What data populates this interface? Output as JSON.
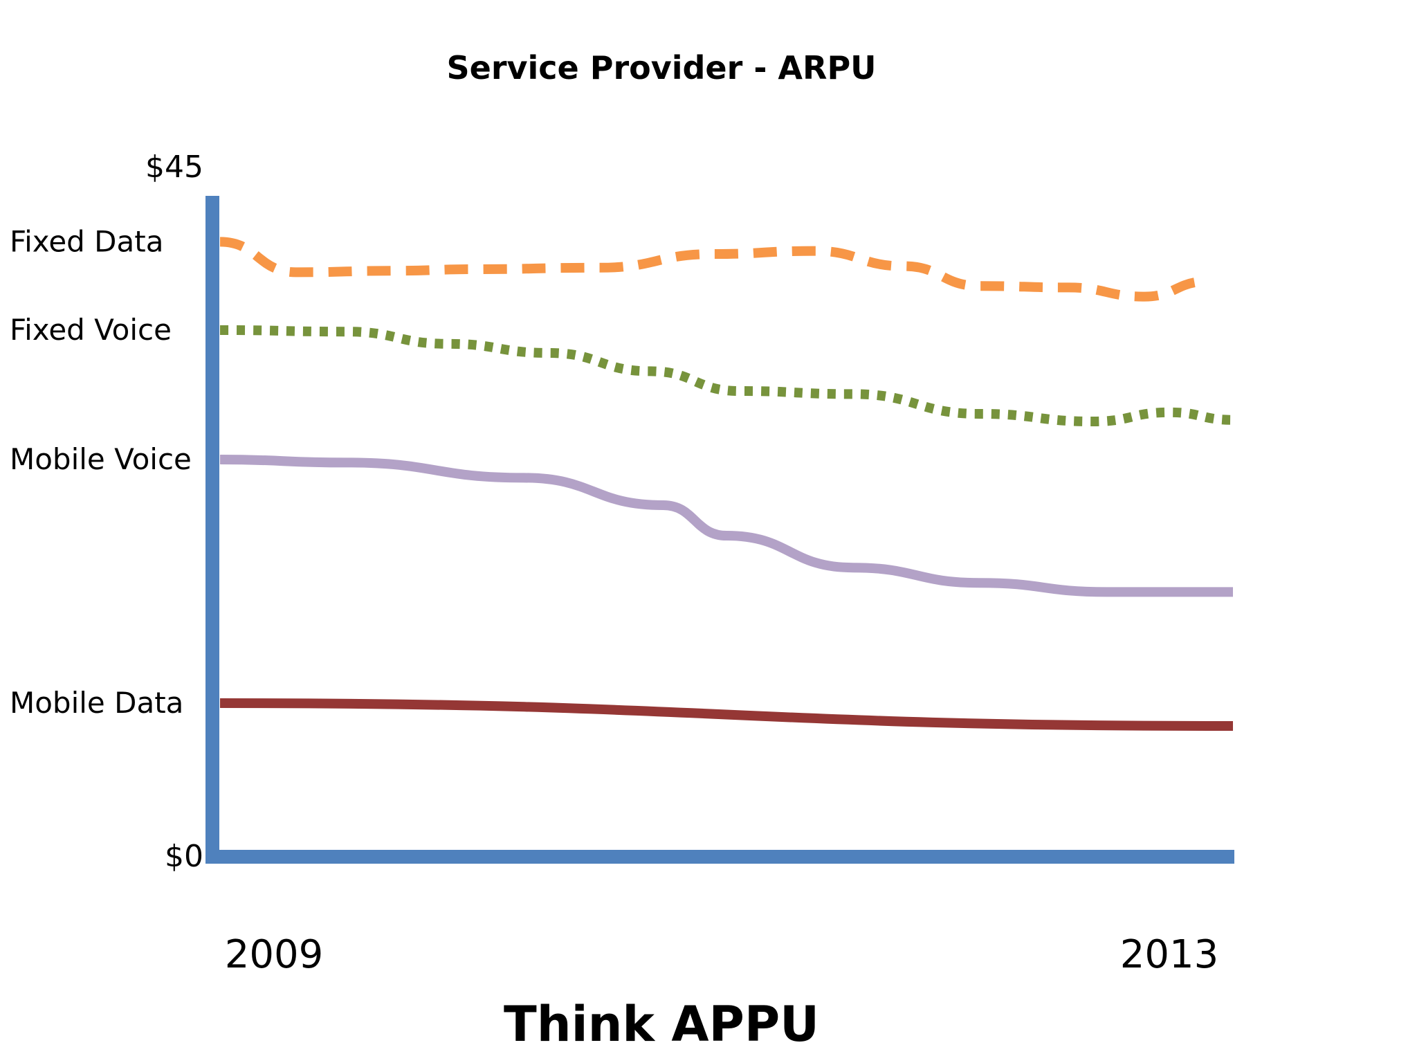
{
  "chart_data": {
    "type": "line",
    "title": "Service Provider - ARPU",
    "xlabel": "Think APPU",
    "ylabel": "",
    "x_ticks": [
      "2009",
      "2013"
    ],
    "y_ticks": [
      "$45",
      "$0"
    ],
    "xlim": [
      2009,
      2013
    ],
    "ylim": [
      0,
      45
    ],
    "grid": false,
    "legend": "none",
    "series": [
      {
        "name": "Fixed Data",
        "color": "#F79646",
        "style": "dashed",
        "points": [
          [
            2009.0,
            40.3
          ],
          [
            2009.3,
            38.3
          ],
          [
            2009.7,
            38.4
          ],
          [
            2010.0,
            38.5
          ],
          [
            2010.5,
            38.6
          ],
          [
            2010.95,
            39.5
          ],
          [
            2011.35,
            39.7
          ],
          [
            2011.7,
            38.7
          ],
          [
            2012.0,
            37.4
          ],
          [
            2012.35,
            37.3
          ],
          [
            2012.65,
            36.7
          ],
          [
            2012.9,
            37.7
          ]
        ]
      },
      {
        "name": "Fixed Voice",
        "color": "#77933C",
        "style": "dotted",
        "points": [
          [
            2009.0,
            34.5
          ],
          [
            2009.5,
            34.4
          ],
          [
            2009.9,
            33.6
          ],
          [
            2010.3,
            33.0
          ],
          [
            2010.7,
            31.8
          ],
          [
            2011.05,
            30.5
          ],
          [
            2011.5,
            30.3
          ],
          [
            2012.0,
            29.0
          ],
          [
            2012.45,
            28.5
          ],
          [
            2012.75,
            29.1
          ],
          [
            2013.0,
            28.6
          ]
        ]
      },
      {
        "name": "Mobile Voice",
        "color": "#B3A2C7",
        "style": "solid",
        "points": [
          [
            2009.0,
            26.0
          ],
          [
            2009.5,
            25.8
          ],
          [
            2010.2,
            24.8
          ],
          [
            2010.75,
            23.0
          ],
          [
            2011.0,
            21.0
          ],
          [
            2011.5,
            18.9
          ],
          [
            2012.0,
            17.9
          ],
          [
            2012.5,
            17.3
          ],
          [
            2013.0,
            17.3
          ]
        ]
      },
      {
        "name": "Mobile Data",
        "color": "#953735",
        "style": "solid",
        "points": [
          [
            2009.0,
            10.0
          ],
          [
            2013.0,
            8.5
          ]
        ]
      }
    ]
  },
  "colors": {
    "axis": "#4F81BD",
    "background": "#ffffff"
  }
}
